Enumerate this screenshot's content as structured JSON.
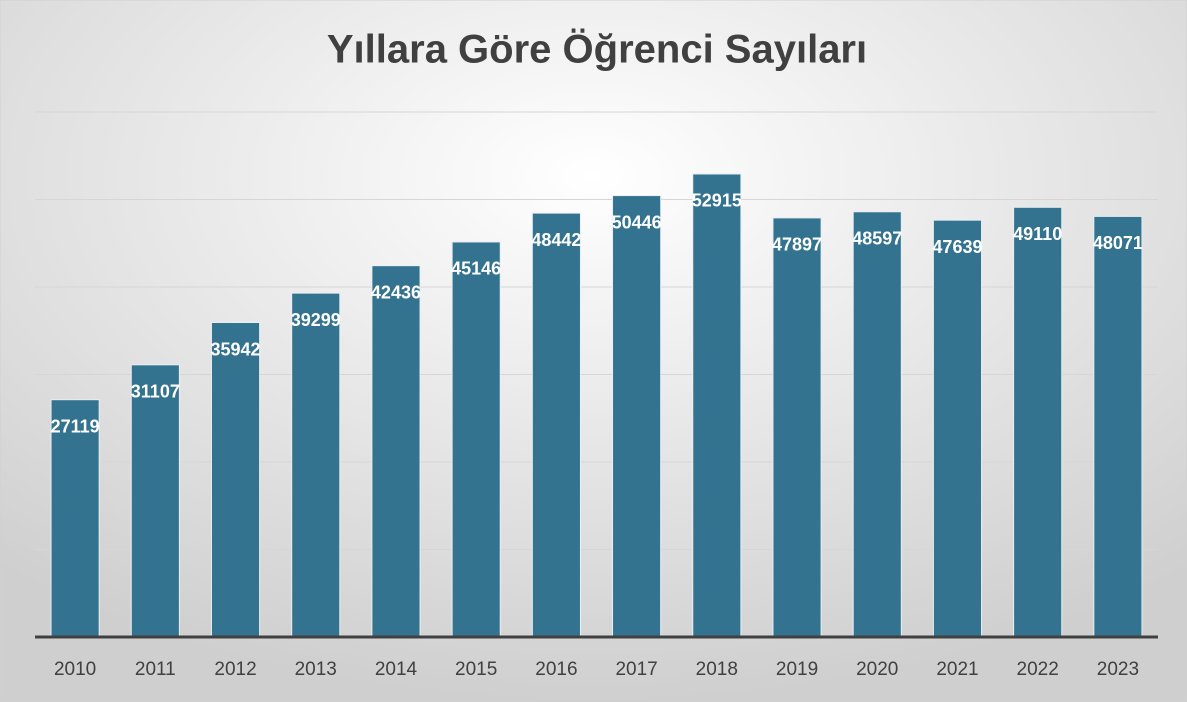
{
  "chart_data": {
    "type": "bar",
    "title": "Yıllara Göre Öğrenci Sayıları",
    "categories": [
      "2010",
      "2011",
      "2012",
      "2013",
      "2014",
      "2015",
      "2016",
      "2017",
      "2018",
      "2019",
      "2020",
      "2021",
      "2022",
      "2023"
    ],
    "values": [
      27119,
      31107,
      35942,
      39299,
      42436,
      45146,
      48442,
      50446,
      52915,
      47897,
      48597,
      47639,
      49110,
      48071
    ],
    "color": "#33738f",
    "ylim": [
      0,
      60000
    ],
    "yticks": [
      0,
      10000,
      20000,
      30000,
      40000,
      50000,
      60000
    ],
    "grid": true
  }
}
